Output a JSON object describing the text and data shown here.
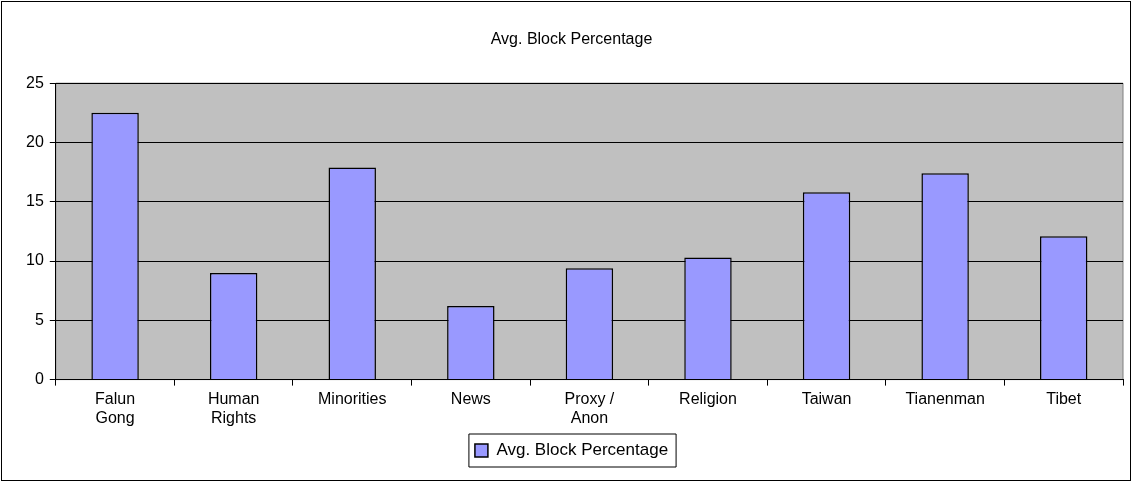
{
  "chart_data": {
    "type": "bar",
    "title": "Avg. Block Percentage",
    "categories": [
      "Falun Gong",
      "Human Rights",
      "Minorities",
      "News",
      "Proxy / Anon",
      "Religion",
      "Taiwan",
      "Tianenman",
      "Tibet"
    ],
    "series": [
      {
        "name": "Avg. Block Percentage",
        "color": "#9999ff",
        "values": [
          22.5,
          9.0,
          17.9,
          6.2,
          9.4,
          10.3,
          15.8,
          17.4,
          12.1
        ]
      }
    ],
    "ylim": [
      0,
      25
    ],
    "yticks": [
      0,
      5,
      10,
      15,
      20,
      25
    ],
    "grid": "y",
    "legend": "bottom"
  }
}
